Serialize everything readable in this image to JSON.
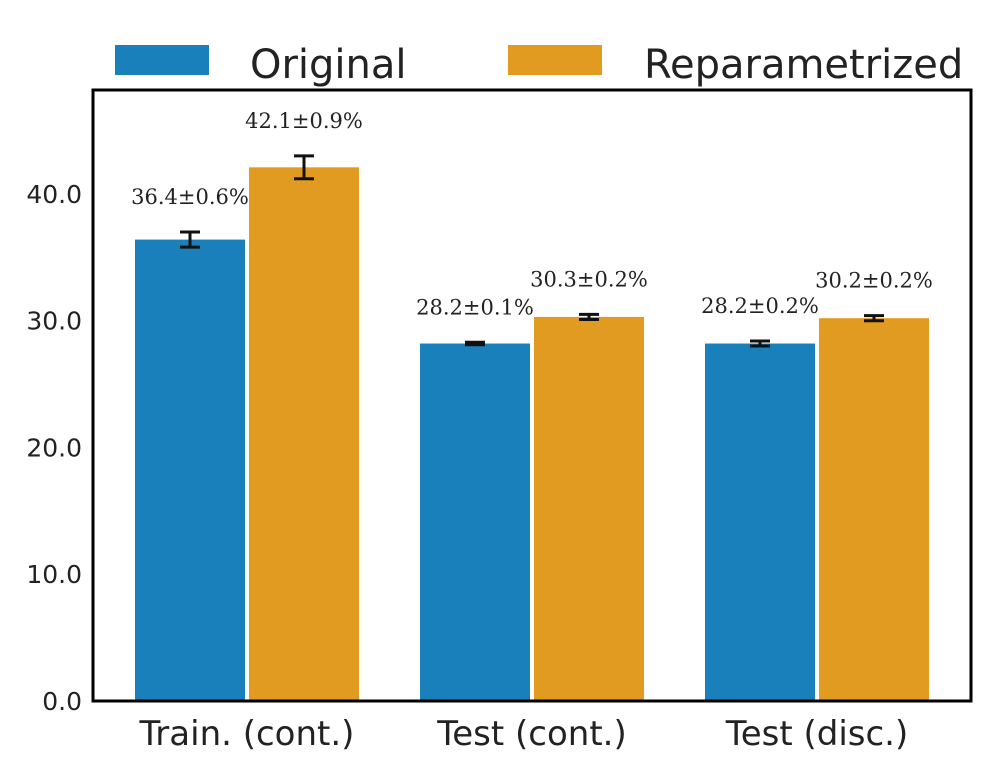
{
  "chart_data": {
    "type": "bar",
    "categories": [
      "Train. (cont.)",
      "Test (cont.)",
      "Test (disc.)"
    ],
    "series": [
      {
        "name": "Original",
        "color": "#1a80bb",
        "values": [
          36.4,
          28.2,
          28.2
        ],
        "errors": [
          0.6,
          0.1,
          0.2
        ],
        "labels": [
          "36.4±0.6%",
          "28.2±0.1%",
          "28.2±0.2%"
        ]
      },
      {
        "name": "Reparametrized",
        "color": "#e09b20",
        "values": [
          42.1,
          30.3,
          30.2
        ],
        "errors": [
          0.9,
          0.2,
          0.2
        ],
        "labels": [
          "42.1±0.9%",
          "30.3±0.2%",
          "30.2±0.2%"
        ]
      }
    ],
    "yticks": [
      "0.0",
      "10.0",
      "20.0",
      "30.0",
      "40.0"
    ],
    "ylim": [
      0,
      48.2
    ],
    "grid": false,
    "legend_position": "top, above plot"
  }
}
